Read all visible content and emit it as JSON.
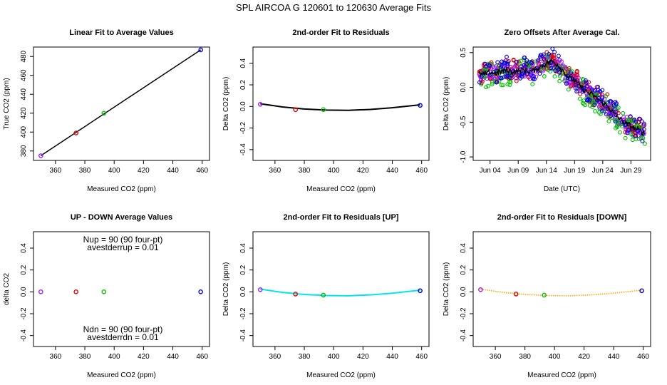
{
  "figure": {
    "title": "SPL   AIRCOA G   120601 to 120630   Average Fits"
  },
  "chart_data": [
    {
      "type": "scatter",
      "title": "Linear Fit to Average Values",
      "xlabel": "Measured CO2 (ppm)",
      "ylabel": "True CO2 (ppm)",
      "xlim": [
        345,
        465
      ],
      "ylim": [
        370,
        490
      ],
      "xticks": [
        360,
        380,
        400,
        420,
        440,
        460
      ],
      "yticks": [
        380,
        400,
        420,
        440,
        460,
        480
      ],
      "points": [
        {
          "x": 350,
          "y": 375,
          "color": "#a020f0"
        },
        {
          "x": 374,
          "y": 399,
          "color": "#e00000"
        },
        {
          "x": 393,
          "y": 420,
          "color": "#00c000"
        },
        {
          "x": 459,
          "y": 487,
          "color": "#0000e0"
        }
      ],
      "fit_line": {
        "x": [
          350,
          459
        ],
        "y": [
          375,
          487
        ],
        "color": "#000000"
      }
    },
    {
      "type": "scatter",
      "title": "2nd-order Fit to Residuals",
      "xlabel": "Measured CO2 (ppm)",
      "ylabel": "Delta CO2 (ppm)",
      "xlim": [
        345,
        465
      ],
      "ylim": [
        -0.5,
        0.55
      ],
      "xticks": [
        360,
        380,
        400,
        420,
        440,
        460
      ],
      "yticks": [
        -0.4,
        -0.2,
        0.0,
        0.2,
        0.4
      ],
      "points": [
        {
          "x": 350,
          "y": 0.02,
          "color": "#a020f0"
        },
        {
          "x": 374,
          "y": -0.03,
          "color": "#e00000"
        },
        {
          "x": 393,
          "y": -0.03,
          "color": "#00c000"
        },
        {
          "x": 459,
          "y": 0.01,
          "color": "#0000e0"
        }
      ],
      "fit_curve": {
        "x": [
          350,
          365,
          380,
          395,
          410,
          425,
          440,
          459
        ],
        "y": [
          0.025,
          -0.005,
          -0.024,
          -0.034,
          -0.036,
          -0.028,
          -0.012,
          0.015
        ],
        "color": "#000000",
        "style": "solid"
      }
    },
    {
      "type": "scatter",
      "title": "Zero Offsets After Average Cal.",
      "xlabel": "Date (UTC)",
      "ylabel": "Delta CO2 (ppm)",
      "xlim": [
        0,
        31.5
      ],
      "ylim": [
        -1.05,
        0.58
      ],
      "xticks": [
        3,
        8,
        13,
        18,
        23,
        28
      ],
      "xticklabels": [
        "Jun 04",
        "Jun 09",
        "Jun 14",
        "Jun 19",
        "Jun 24",
        "Jun 29"
      ],
      "yticks": [
        -1.0,
        -0.5,
        0.0,
        0.5
      ],
      "trend": {
        "days": [
          1,
          2,
          3,
          4,
          5,
          6,
          7,
          8,
          9,
          10,
          11,
          12,
          13,
          14,
          15,
          16,
          17,
          18,
          19,
          20,
          21,
          22,
          23,
          24,
          25,
          26,
          27,
          28,
          29,
          30,
          30.5
        ],
        "values": [
          0.2,
          0.18,
          0.22,
          0.2,
          0.23,
          0.25,
          0.22,
          0.24,
          0.25,
          0.23,
          0.25,
          0.3,
          0.35,
          0.38,
          0.33,
          0.24,
          0.14,
          0.1,
          0.02,
          -0.06,
          -0.1,
          -0.16,
          -0.22,
          -0.28,
          -0.38,
          -0.45,
          -0.52,
          -0.56,
          -0.6,
          -0.64,
          -0.66
        ],
        "spread": 0.09
      },
      "series": [
        {
          "color": "#a020f0",
          "offset": 0.0,
          "jitter": 0.08
        },
        {
          "color": "#e00000",
          "offset": 0.02,
          "jitter": 0.12
        },
        {
          "color": "#00c000",
          "offset": -0.03,
          "jitter": 0.15
        },
        {
          "color": "#0000e0",
          "offset": 0.03,
          "jitter": 0.12
        }
      ],
      "fit_color": "#000000"
    },
    {
      "type": "scatter",
      "title": "UP - DOWN Average Values",
      "xlabel": "Measured CO2 (ppm)",
      "ylabel": "delta CO2",
      "xlim": [
        345,
        465
      ],
      "ylim": [
        -0.5,
        0.55
      ],
      "xticks": [
        360,
        380,
        400,
        420,
        440,
        460
      ],
      "yticks": [
        -0.4,
        -0.2,
        0.0,
        0.2,
        0.4
      ],
      "points": [
        {
          "x": 350,
          "y": 0.0,
          "color": "#a020f0"
        },
        {
          "x": 374,
          "y": 0.0,
          "color": "#e00000"
        },
        {
          "x": 393,
          "y": 0.0,
          "color": "#00c000"
        },
        {
          "x": 459,
          "y": 0.0,
          "color": "#0000e0"
        }
      ],
      "annotations_top": [
        "Nup = 90 (90 four-pt)",
        "avestderrup =  0.01"
      ],
      "annotations_bottom": [
        "Ndn = 90 (90 four-pt)",
        "avestderrdn =  0.01"
      ]
    },
    {
      "type": "scatter",
      "title": "2nd-order Fit to Residuals [UP]",
      "xlabel": "Measured CO2 (ppm)",
      "ylabel": "Delta CO2 (ppm)",
      "xlim": [
        345,
        465
      ],
      "ylim": [
        -0.5,
        0.55
      ],
      "xticks": [
        360,
        380,
        400,
        420,
        440,
        460
      ],
      "yticks": [
        -0.4,
        -0.2,
        0.0,
        0.2,
        0.4
      ],
      "points": [
        {
          "x": 350,
          "y": 0.02,
          "color": "#a020f0"
        },
        {
          "x": 374,
          "y": -0.02,
          "color": "#e00000"
        },
        {
          "x": 393,
          "y": -0.03,
          "color": "#00c000"
        },
        {
          "x": 459,
          "y": 0.01,
          "color": "#0000e0"
        }
      ],
      "fit_curve": {
        "x": [
          350,
          365,
          380,
          395,
          410,
          425,
          440,
          459
        ],
        "y": [
          0.025,
          -0.005,
          -0.024,
          -0.034,
          -0.036,
          -0.028,
          -0.012,
          0.015
        ],
        "color": "#00e5ee",
        "style": "solid"
      }
    },
    {
      "type": "scatter",
      "title": "2nd-order Fit to Residuals [DOWN]",
      "xlabel": "Measured CO2 (ppm)",
      "ylabel": "Delta CO2 (ppm)",
      "xlim": [
        345,
        465
      ],
      "ylim": [
        -0.5,
        0.55
      ],
      "xticks": [
        360,
        380,
        400,
        420,
        440,
        460
      ],
      "yticks": [
        -0.4,
        -0.2,
        0.0,
        0.2,
        0.4
      ],
      "points": [
        {
          "x": 350,
          "y": 0.02,
          "color": "#a020f0"
        },
        {
          "x": 374,
          "y": -0.02,
          "color": "#e00000"
        },
        {
          "x": 393,
          "y": -0.03,
          "color": "#00c000"
        },
        {
          "x": 459,
          "y": 0.01,
          "color": "#0000e0"
        }
      ],
      "fit_curve": {
        "x": [
          350,
          365,
          380,
          395,
          410,
          425,
          440,
          459
        ],
        "y": [
          0.025,
          -0.005,
          -0.024,
          -0.034,
          -0.036,
          -0.028,
          -0.012,
          0.015
        ],
        "color": "#ffa500",
        "style": "dotted"
      }
    }
  ]
}
